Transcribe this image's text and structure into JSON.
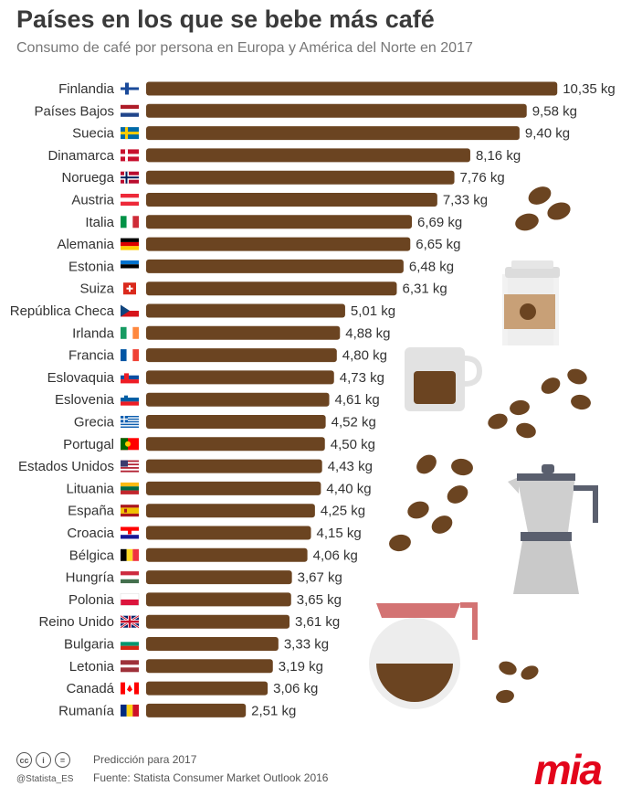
{
  "title": "Países en los que se bebe más café",
  "subtitle": "Consumo de café por persona en Europa y América del Norte en 2017",
  "chart_data": {
    "type": "bar",
    "orientation": "horizontal",
    "unit": "kg",
    "categories": [
      "Finlandia",
      "Países Bajos",
      "Suecia",
      "Dinamarca",
      "Noruega",
      "Austria",
      "Italia",
      "Alemania",
      "Estonia",
      "Suiza",
      "República Checa",
      "Irlanda",
      "Francia",
      "Eslovaquia",
      "Eslovenia",
      "Grecia",
      "Portugal",
      "Estados Unidos",
      "Lituania",
      "España",
      "Croacia",
      "Bélgica",
      "Hungría",
      "Polonia",
      "Reino Unido",
      "Bulgaria",
      "Letonia",
      "Canadá",
      "Rumanía"
    ],
    "values": [
      10.35,
      9.58,
      9.4,
      8.16,
      7.76,
      7.33,
      6.69,
      6.65,
      6.48,
      6.31,
      5.01,
      4.88,
      4.8,
      4.73,
      4.61,
      4.52,
      4.5,
      4.43,
      4.4,
      4.25,
      4.15,
      4.06,
      3.67,
      3.65,
      3.61,
      3.33,
      3.19,
      3.06,
      2.51
    ],
    "value_labels": [
      "10,35 kg",
      "9,58 kg",
      "9,40 kg",
      "8,16 kg",
      "7,76 kg",
      "7,33 kg",
      "6,69 kg",
      "6,65 kg",
      "6,48 kg",
      "6,31 kg",
      "5,01 kg",
      "4,88 kg",
      "4,80 kg",
      "4,73 kg",
      "4,61 kg",
      "4,52 kg",
      "4,50 kg",
      "4,43 kg",
      "4,40 kg",
      "4,25 kg",
      "4,15 kg",
      "4,06 kg",
      "3,67 kg",
      "3,65 kg",
      "3,61 kg",
      "3,33 kg",
      "3,19 kg",
      "3,06 kg",
      "2,51 kg"
    ],
    "bar_color": "#6b4421",
    "grid": false,
    "legend": "none"
  },
  "flags": [
    "finland",
    "netherlands",
    "sweden",
    "denmark",
    "norway",
    "austria",
    "italy",
    "germany",
    "estonia",
    "switzerland",
    "czech-republic",
    "ireland",
    "france",
    "slovakia",
    "slovenia",
    "greece",
    "portugal",
    "united-states",
    "lithuania",
    "spain",
    "croatia",
    "belgium",
    "hungary",
    "poland",
    "united-kingdom",
    "bulgaria",
    "latvia",
    "canada",
    "romania"
  ],
  "footer": {
    "license_icons": [
      "cc",
      "i",
      "="
    ],
    "handle": "@Statista_ES",
    "note": "Predicción para 2017",
    "source": "Fuente: Statista Consumer Market Outlook 2016",
    "logo": "mia"
  },
  "colors": {
    "coffee": "#6b4421",
    "title": "#3a3a3a",
    "subtitle": "#777777",
    "logo": "#e3051b",
    "illustration_gray": "#c9c9c9",
    "pot_handle": "#d37373"
  },
  "decorations": [
    "coffee-beans",
    "takeaway-coffee-cup",
    "coffee-mug",
    "moka-pot",
    "coffee-carafe"
  ]
}
